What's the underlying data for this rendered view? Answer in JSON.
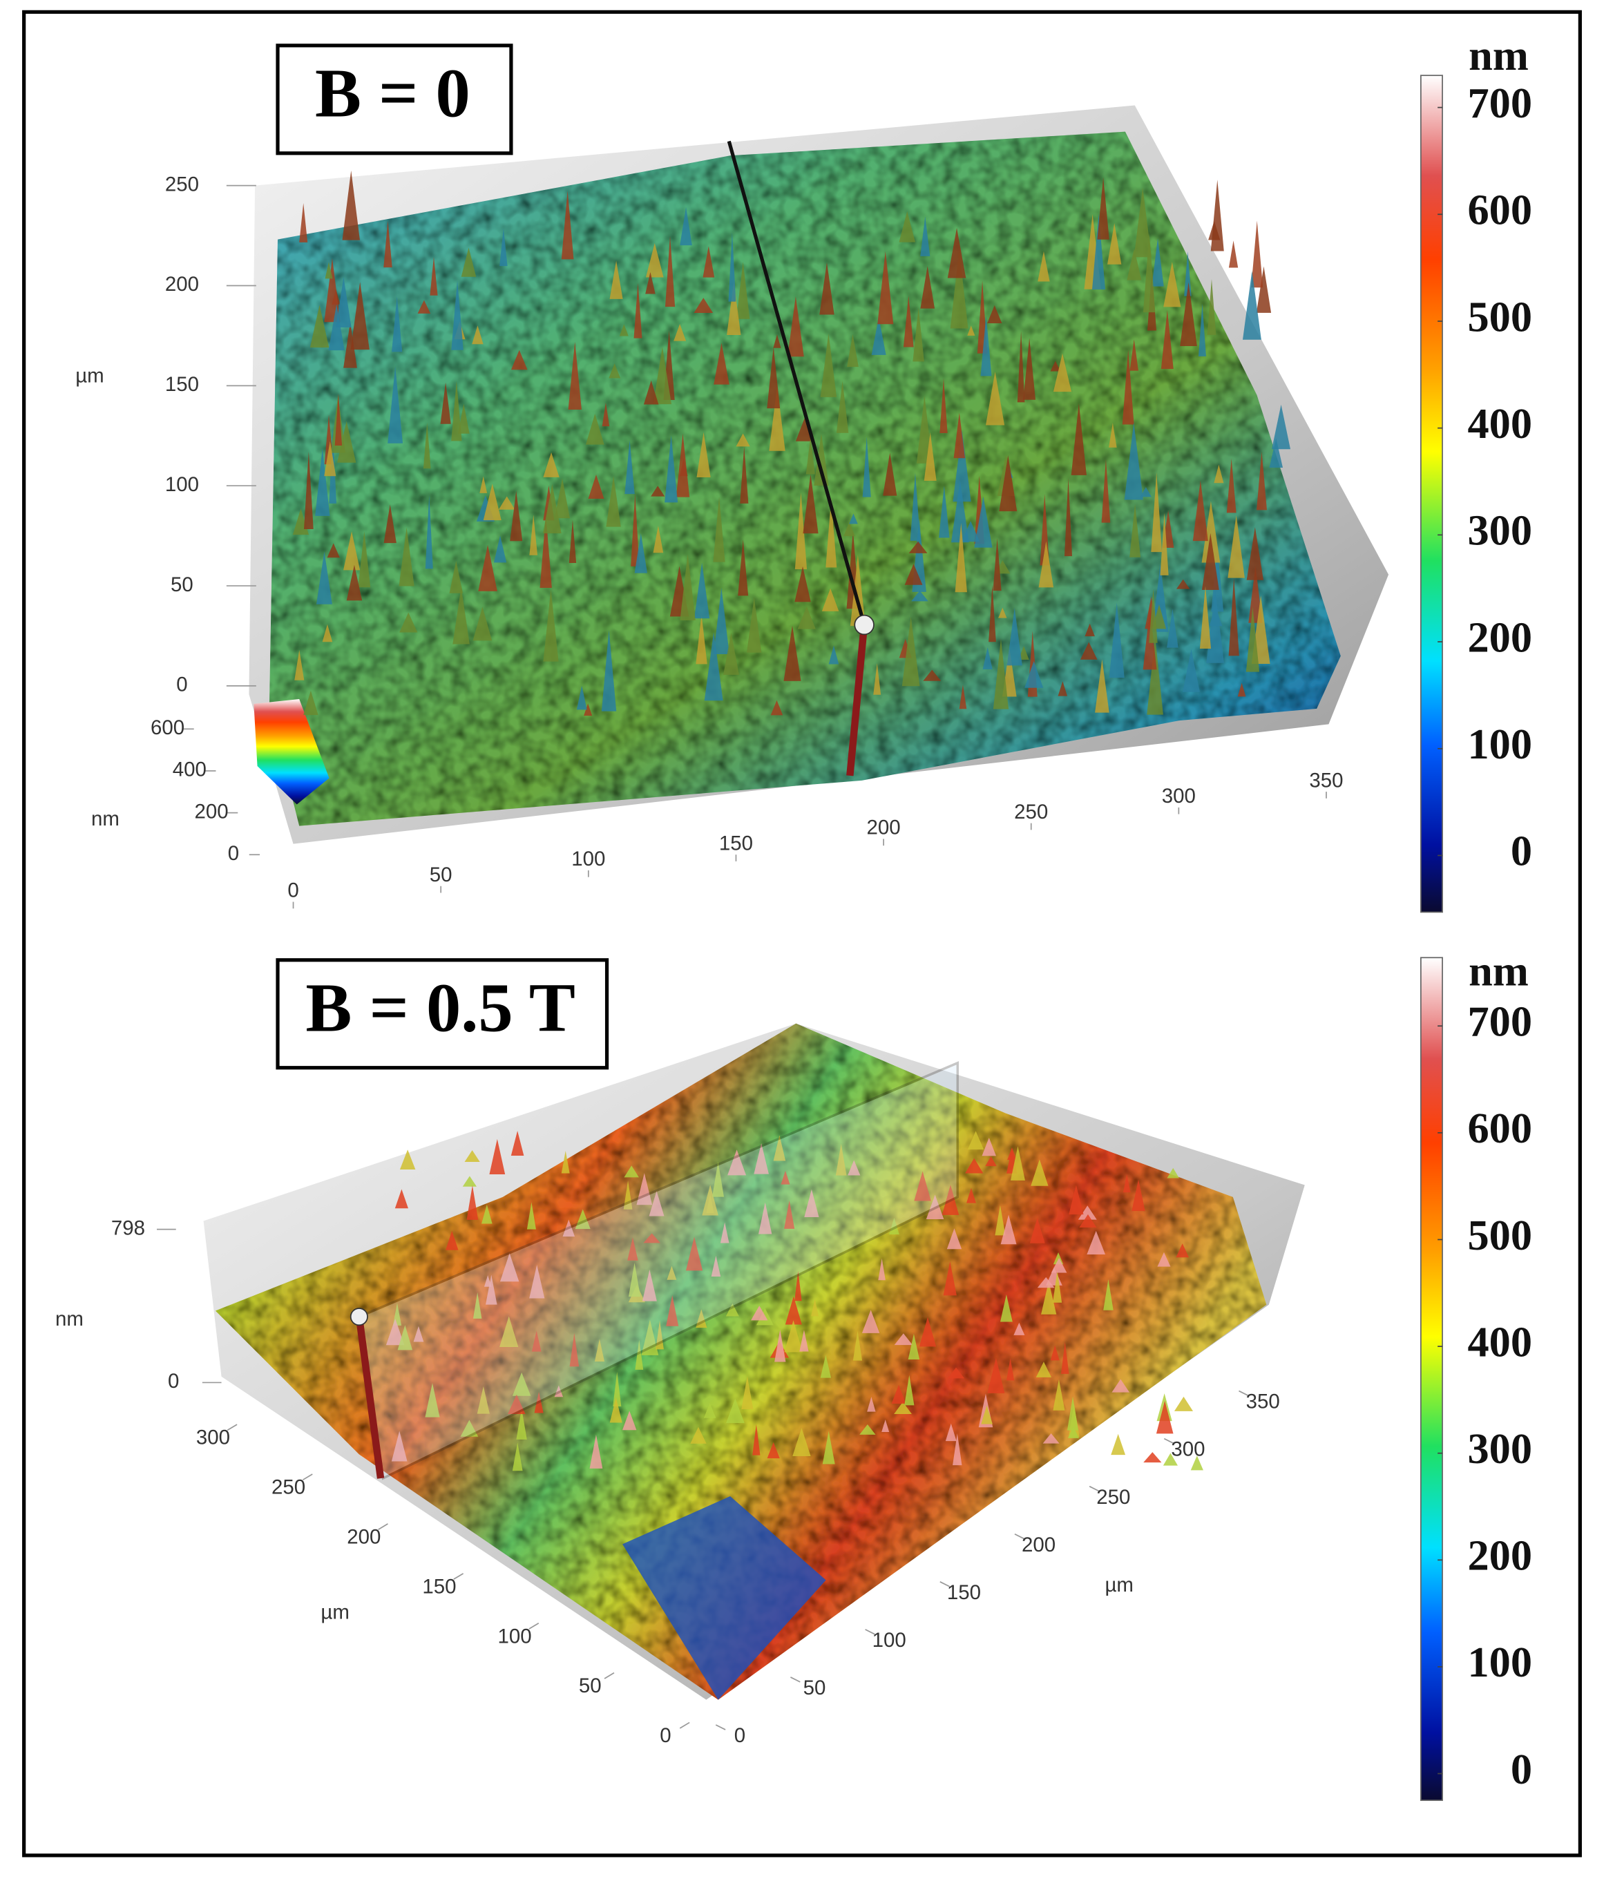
{
  "chart_data": [
    {
      "type": "surface",
      "title": "B = 0",
      "y_label": "µm",
      "z_label": "nm",
      "xlim": [
        0,
        350
      ],
      "xticks": [
        0,
        50,
        100,
        150,
        200,
        250,
        300,
        350
      ],
      "ylim": [
        0,
        250
      ],
      "yticks": [
        0,
        50,
        100,
        150,
        200,
        250
      ],
      "zlim": [
        0,
        600
      ],
      "zticks": [
        0,
        200,
        400,
        600
      ],
      "colorbar": {
        "label": "nm",
        "lim": [
          -53,
          730
        ],
        "ticks": [
          0,
          100,
          200,
          300,
          400,
          500,
          600,
          700
        ]
      }
    },
    {
      "type": "surface",
      "title": "B = 0.5 T",
      "x_label": "µm",
      "y_label": "µm",
      "z_label": "nm",
      "xlim": [
        0,
        350
      ],
      "xticks": [
        0,
        50,
        100,
        150,
        200,
        250,
        300,
        350
      ],
      "ylim": [
        0,
        300
      ],
      "yticks": [
        0,
        50,
        100,
        150,
        200,
        250,
        300
      ],
      "zlim": [
        0,
        798
      ],
      "zticks": [
        0,
        798
      ],
      "colorbar": {
        "label": "nm",
        "lim": [
          -25,
          764
        ],
        "ticks": [
          0,
          100,
          200,
          300,
          400,
          500,
          600,
          700
        ]
      }
    }
  ]
}
